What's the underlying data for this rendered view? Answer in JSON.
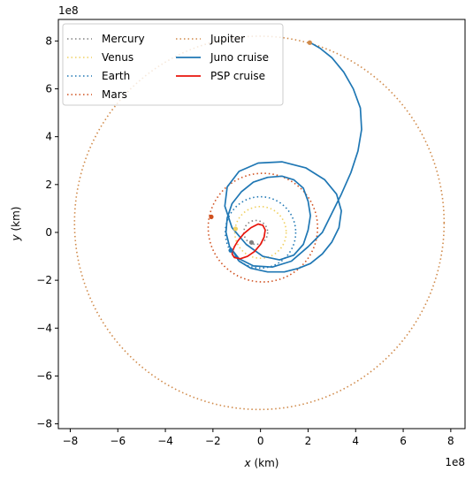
{
  "chart_data": {
    "type": "line",
    "xlabel_var": "x",
    "xlabel_unit": " (km)",
    "ylabel_var": "y",
    "ylabel_unit": " (km)",
    "x_exponent": "1e8",
    "y_exponent": "1e8",
    "xlim": [
      -8.5,
      8.6
    ],
    "ylim": [
      -8.2,
      8.9
    ],
    "x_ticks": [
      -8,
      -6,
      -4,
      -2,
      0,
      2,
      4,
      6,
      8
    ],
    "y_ticks": [
      -8,
      -6,
      -4,
      -2,
      0,
      2,
      4,
      6,
      8
    ],
    "x_tick_labels": [
      "−8",
      "−6",
      "−4",
      "−2",
      "0",
      "2",
      "4",
      "6",
      "8"
    ],
    "y_tick_labels": [
      "−8",
      "−6",
      "−4",
      "−2",
      "0",
      "2",
      "4",
      "6",
      "8"
    ],
    "legend_position": "upper-left",
    "orbits": [
      {
        "name": "Mercury",
        "color": "#808080",
        "center": [
          -0.2,
          0.0
        ],
        "rx": 0.5,
        "ry": 0.5,
        "dot": [
          -0.38,
          -0.42
        ]
      },
      {
        "name": "Venus",
        "color": "#f0d060",
        "center": [
          0.0,
          0.0
        ],
        "rx": 1.08,
        "ry": 1.08,
        "dot": [
          -1.05,
          0.15
        ]
      },
      {
        "name": "Earth",
        "color": "#1f77b4",
        "center": [
          0.0,
          0.0
        ],
        "rx": 1.48,
        "ry": 1.49,
        "dot": [
          -1.25,
          -0.75
        ]
      },
      {
        "name": "Mars",
        "color": "#d0501e",
        "center": [
          0.1,
          0.2
        ],
        "rx": 2.3,
        "ry": 2.27,
        "dot": [
          -2.07,
          0.65
        ]
      },
      {
        "name": "Jupiter",
        "color": "#d08a4a",
        "center": [
          -0.05,
          0.4
        ],
        "rx": 7.77,
        "ry": 7.8,
        "dot": [
          2.07,
          7.93
        ]
      }
    ],
    "series": [
      {
        "name": "Juno cruise",
        "color": "#1f77b4",
        "style": "solid",
        "x": [
          -1.18,
          -0.9,
          -0.4,
          0.3,
          1.0,
          1.6,
          2.1,
          2.6,
          3.0,
          3.3,
          3.4,
          3.2,
          2.7,
          1.9,
          0.9,
          -0.1,
          -0.9,
          -1.4,
          -1.5,
          -1.2,
          -0.6,
          0.1,
          0.8,
          1.4,
          1.8,
          2.0,
          2.1,
          2.0,
          1.8,
          1.4,
          0.9,
          0.3,
          -0.3,
          -0.8,
          -1.2,
          -1.4,
          -1.45,
          -1.3,
          -0.9,
          -0.3,
          0.5,
          1.3,
          2.0,
          2.6,
          3.0,
          3.4,
          3.8,
          4.1,
          4.25,
          4.2,
          3.9,
          3.5,
          3.0,
          2.5,
          2.1
        ],
        "y": [
          -0.75,
          -1.2,
          -1.5,
          -1.65,
          -1.65,
          -1.5,
          -1.3,
          -0.9,
          -0.4,
          0.2,
          0.9,
          1.6,
          2.2,
          2.7,
          2.95,
          2.9,
          2.55,
          1.9,
          1.1,
          0.2,
          -0.5,
          -1.0,
          -1.15,
          -0.95,
          -0.5,
          0.1,
          0.7,
          1.3,
          1.85,
          2.2,
          2.35,
          2.3,
          2.1,
          1.7,
          1.2,
          0.6,
          0.0,
          -0.6,
          -1.1,
          -1.4,
          -1.45,
          -1.2,
          -0.6,
          0.0,
          0.8,
          1.6,
          2.5,
          3.4,
          4.3,
          5.2,
          6.0,
          6.7,
          7.3,
          7.7,
          7.93
        ]
      },
      {
        "name": "PSP cruise",
        "color": "#e8150c",
        "style": "solid",
        "x": [
          -1.2,
          -1.1,
          -0.85,
          -0.55,
          -0.25,
          0.0,
          0.15,
          0.2,
          0.1,
          -0.1,
          -0.4,
          -0.7,
          -0.95,
          -1.1,
          -1.18,
          -1.2
        ],
        "y": [
          -0.9,
          -1.05,
          -1.1,
          -1.0,
          -0.8,
          -0.5,
          -0.2,
          0.1,
          0.3,
          0.35,
          0.2,
          -0.05,
          -0.35,
          -0.6,
          -0.8,
          -0.9
        ]
      }
    ]
  }
}
